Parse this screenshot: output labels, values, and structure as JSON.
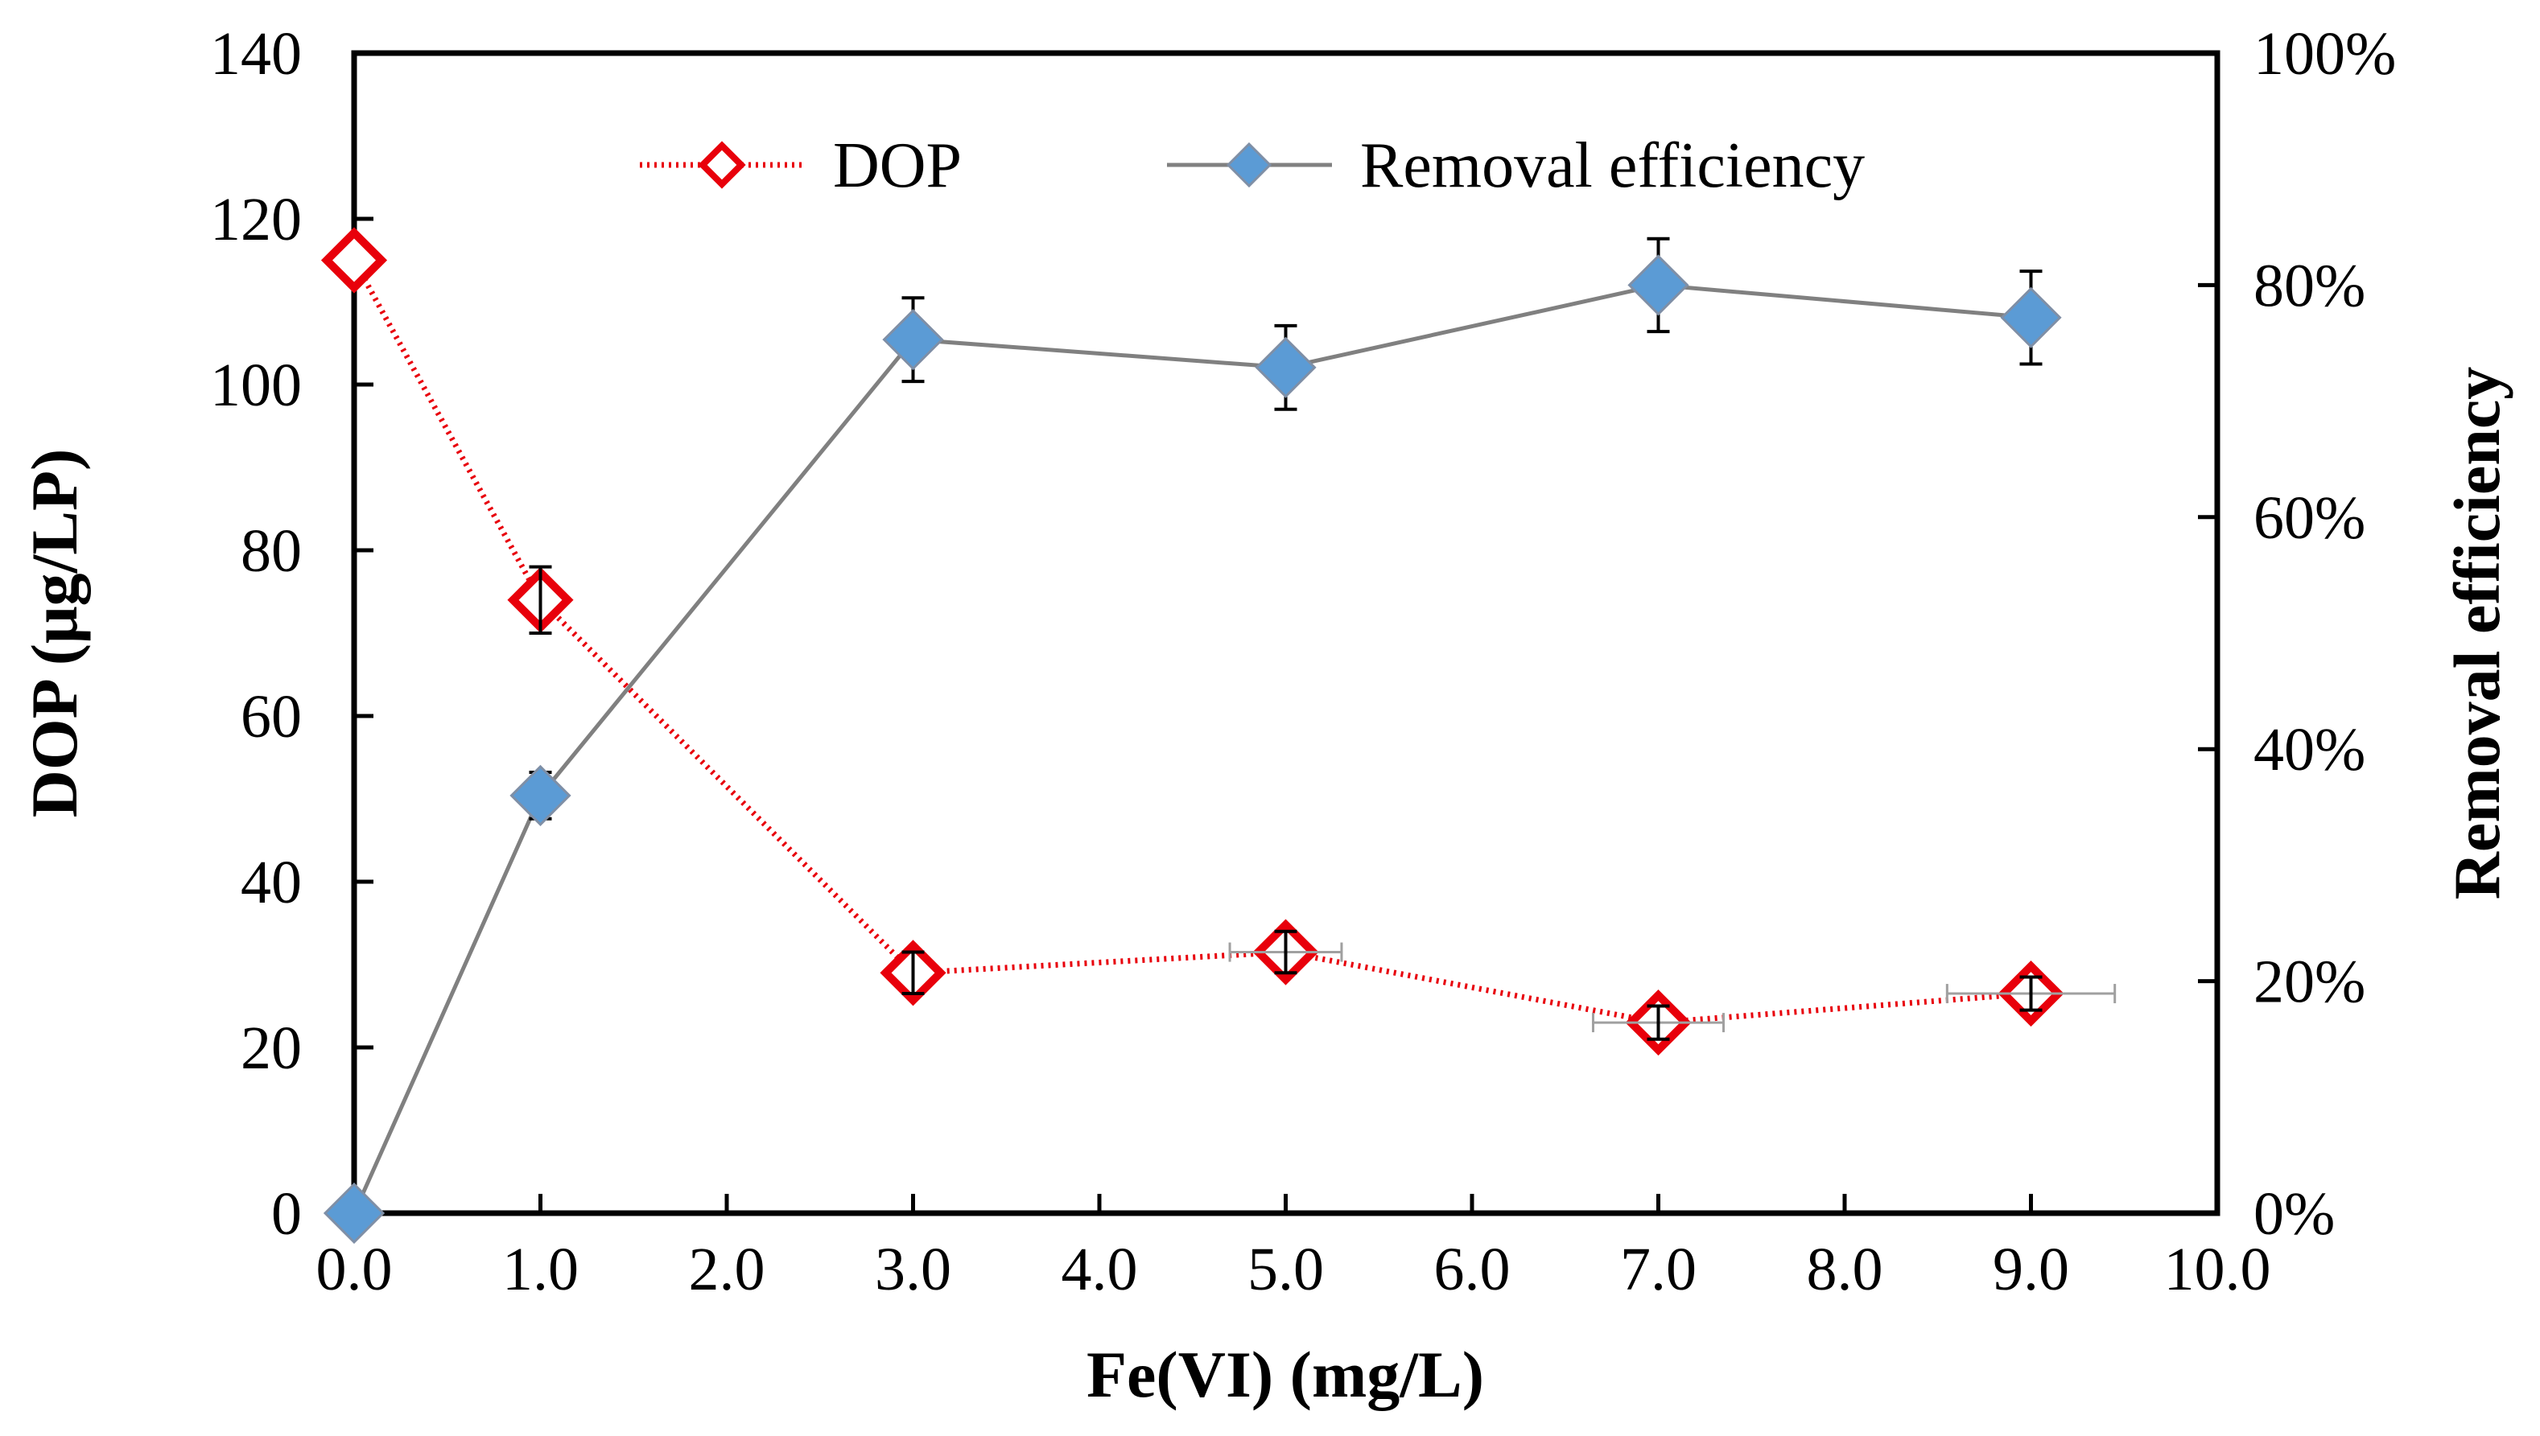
{
  "chart_data": {
    "type": "line",
    "title": "",
    "xlabel": "Fe(VI) (mg/L)",
    "ylabel": "DOP (μg/LP)",
    "y2label": "Removal efficiency",
    "xlim": [
      0,
      10
    ],
    "ylim": [
      0,
      140
    ],
    "y2lim": [
      0,
      1
    ],
    "x_ticks": [
      "0.0",
      "1.0",
      "2.0",
      "3.0",
      "4.0",
      "5.0",
      "6.0",
      "7.0",
      "8.0",
      "9.0",
      "10.0"
    ],
    "y_ticks": [
      "0",
      "20",
      "40",
      "60",
      "80",
      "100",
      "120",
      "140"
    ],
    "y2_ticks": [
      "0%",
      "20%",
      "40%",
      "60%",
      "80%",
      "100%"
    ],
    "grid": false,
    "legend_position": "top",
    "x": [
      0,
      1,
      3,
      5,
      7,
      9
    ],
    "series": [
      {
        "name": "DOP",
        "axis": "left",
        "color": "#e8000b",
        "marker": "diamond-open",
        "line_style": "dotted",
        "values": [
          115,
          74,
          29,
          31.5,
          23,
          26.5
        ],
        "y_error": [
          0,
          4,
          2.5,
          2.5,
          2,
          2
        ],
        "x_error": [
          0,
          0,
          0,
          0.3,
          0.35,
          0.45
        ]
      },
      {
        "name": "Removal efficiency",
        "axis": "right",
        "color": "#5b9bd5",
        "line_color": "#808080",
        "marker": "diamond-filled",
        "line_style": "solid",
        "values": [
          0.0,
          0.36,
          0.753,
          0.729,
          0.8,
          0.772
        ],
        "y_error": [
          0,
          0.02,
          0.036,
          0.036,
          0.04,
          0.04
        ]
      }
    ]
  }
}
